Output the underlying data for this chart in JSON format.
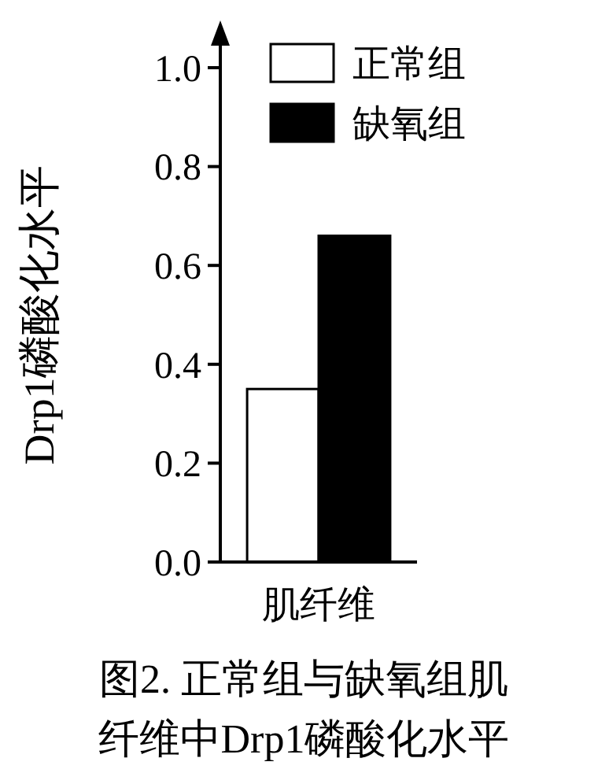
{
  "chart_data": {
    "type": "bar",
    "title": "图2. 正常组与缺氧组肌纤维中Drp1磷酸化水平",
    "ylabel": "Drp1磷酸化水平",
    "categories": [
      "肌纤维"
    ],
    "series": [
      {
        "name": "正常组",
        "color": "#ffffff",
        "values": [
          0.35
        ]
      },
      {
        "name": "缺氧组",
        "color": "#000000",
        "values": [
          0.66
        ]
      }
    ],
    "ylim": [
      0,
      1.0
    ],
    "yticks": [
      {
        "value": 0,
        "label": "0.0"
      },
      {
        "value": 0.2,
        "label": "0.2"
      },
      {
        "value": 0.4,
        "label": "0.4"
      },
      {
        "value": 0.6,
        "label": "0.6"
      },
      {
        "value": 0.8,
        "label": "0.8"
      },
      {
        "value": 1.0,
        "label": "1.0"
      }
    ],
    "grid": false,
    "legend": "top right"
  }
}
